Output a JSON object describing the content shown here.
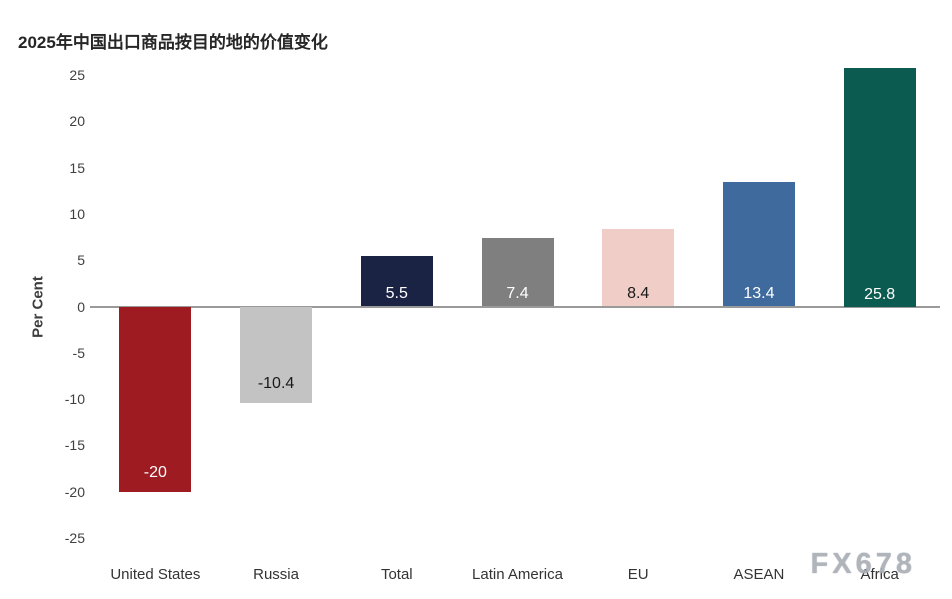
{
  "title": "2025年中国出口商品按目的地的价值变化",
  "watermark": "FX678",
  "chart_data": {
    "type": "bar",
    "title": "2025年中国出口商品按目的地的价值变化",
    "categories": [
      "United States",
      "Russia",
      "Total",
      "Latin America",
      "EU",
      "ASEAN",
      "Africa"
    ],
    "values": [
      -20,
      -10.4,
      5.5,
      7.4,
      8.4,
      13.4,
      25.8
    ],
    "data_labels": [
      "-20",
      "-10.4",
      "5.5",
      "7.4",
      "8.4",
      "13.4",
      "25.8"
    ],
    "bar_colors": [
      "#9e1b22",
      "#c3c3c3",
      "#1b2345",
      "#7f7f7f",
      "#f0cdc7",
      "#3e6a9e",
      "#0c5b50"
    ],
    "label_colors": [
      "#ffffff",
      "#1a1a1a",
      "#ffffff",
      "#ffffff",
      "#1a1a1a",
      "#ffffff",
      "#ffffff"
    ],
    "xlabel": "",
    "ylabel": "Per Cent",
    "ylim": [
      -25,
      25
    ],
    "ytick_step": 5,
    "grid": false,
    "legend": false
  }
}
